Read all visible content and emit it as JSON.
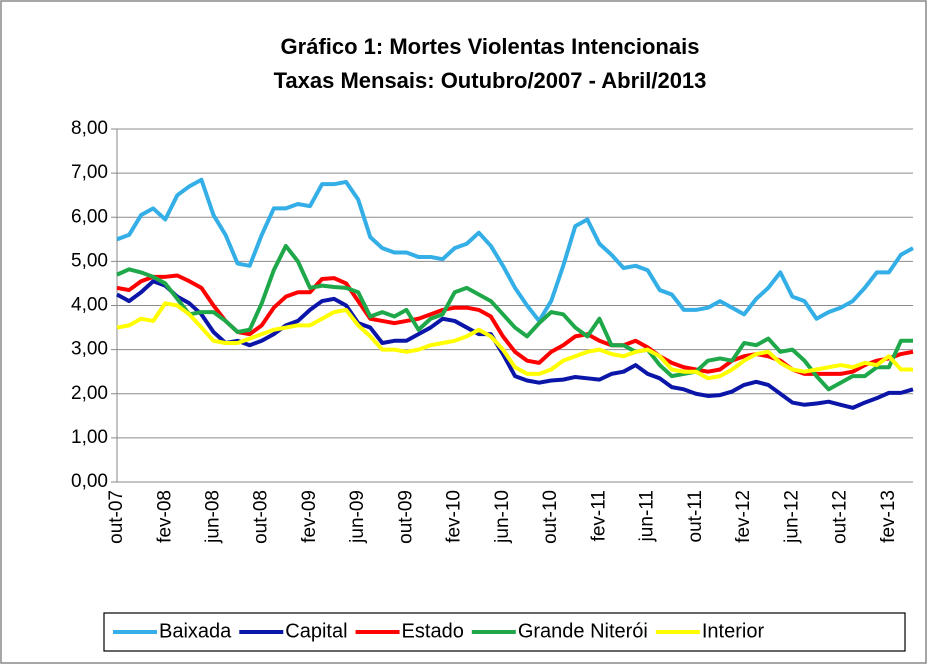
{
  "chart_data": {
    "type": "line",
    "title": "Gráfico 1: Mortes Violentas Intencionais",
    "subtitle": "Taxas Mensais: Outubro/2007 - Abril/2013",
    "categories": [
      "out-07",
      null,
      null,
      null,
      "fev-08",
      null,
      null,
      null,
      "jun-08",
      null,
      null,
      null,
      "out-08",
      null,
      null,
      null,
      "fev-09",
      null,
      null,
      null,
      "jun-09",
      null,
      null,
      null,
      "out-09",
      null,
      null,
      null,
      "fev-10",
      null,
      null,
      null,
      "jun-10",
      null,
      null,
      null,
      "out-10",
      null,
      null,
      null,
      "fev-11",
      null,
      null,
      null,
      "jun-11",
      null,
      null,
      null,
      "out-11",
      null,
      null,
      null,
      "fev-12",
      null,
      null,
      null,
      "jun-12",
      null,
      null,
      null,
      "out-12",
      null,
      null,
      null,
      "fev-13",
      null,
      null
    ],
    "series": [
      {
        "name": "Baixada",
        "color": "#33aee6",
        "values": [
          5.5,
          5.6,
          6.05,
          6.2,
          5.95,
          6.5,
          6.7,
          6.85,
          6.05,
          5.6,
          4.95,
          4.9,
          5.6,
          6.2,
          6.2,
          6.3,
          6.25,
          6.75,
          6.75,
          6.8,
          6.4,
          5.55,
          5.3,
          5.2,
          5.2,
          5.1,
          5.1,
          5.05,
          5.3,
          5.4,
          5.65,
          5.35,
          4.9,
          4.4,
          4.0,
          3.65,
          4.1,
          4.9,
          5.8,
          5.95,
          5.4,
          5.15,
          4.85,
          4.9,
          4.8,
          4.35,
          4.25,
          3.9,
          3.9,
          3.95,
          4.1,
          3.95,
          3.8,
          4.15,
          4.4,
          4.75,
          4.2,
          4.1,
          3.7,
          3.85,
          3.95,
          4.1,
          4.4,
          4.75,
          4.75,
          5.15,
          5.3
        ]
      },
      {
        "name": "Capital",
        "color": "#0b16a8",
        "values": [
          4.25,
          4.1,
          4.3,
          4.55,
          4.45,
          4.2,
          4.05,
          3.8,
          3.4,
          3.15,
          3.2,
          3.1,
          3.2,
          3.35,
          3.55,
          3.65,
          3.9,
          4.1,
          4.15,
          4.0,
          3.6,
          3.5,
          3.15,
          3.2,
          3.2,
          3.35,
          3.5,
          3.7,
          3.65,
          3.5,
          3.35,
          3.35,
          2.9,
          2.4,
          2.3,
          2.25,
          2.3,
          2.32,
          2.38,
          2.35,
          2.32,
          2.45,
          2.5,
          2.65,
          2.45,
          2.35,
          2.15,
          2.1,
          2.0,
          1.95,
          1.97,
          2.05,
          2.2,
          2.27,
          2.2,
          2.0,
          1.8,
          1.75,
          1.78,
          1.82,
          1.75,
          1.68,
          1.8,
          1.9,
          2.02,
          2.02,
          2.1
        ]
      },
      {
        "name": "Estado",
        "color": "#ff0000",
        "values": [
          4.4,
          4.35,
          4.55,
          4.65,
          4.65,
          4.68,
          4.55,
          4.4,
          4.0,
          3.65,
          3.4,
          3.35,
          3.55,
          3.95,
          4.2,
          4.3,
          4.3,
          4.6,
          4.62,
          4.5,
          4.1,
          3.7,
          3.65,
          3.6,
          3.65,
          3.7,
          3.8,
          3.9,
          3.95,
          3.95,
          3.9,
          3.75,
          3.3,
          2.95,
          2.75,
          2.7,
          2.95,
          3.1,
          3.3,
          3.35,
          3.2,
          3.1,
          3.1,
          3.2,
          3.05,
          2.85,
          2.7,
          2.6,
          2.55,
          2.5,
          2.55,
          2.75,
          2.85,
          2.9,
          2.85,
          2.75,
          2.55,
          2.45,
          2.45,
          2.45,
          2.45,
          2.5,
          2.65,
          2.75,
          2.8,
          2.9,
          2.95
        ]
      },
      {
        "name": "Grande Niterói",
        "color": "#1fa84a",
        "values": [
          4.7,
          4.82,
          4.75,
          4.65,
          4.5,
          4.15,
          3.8,
          3.85,
          3.85,
          3.65,
          3.4,
          3.45,
          4.05,
          4.8,
          5.35,
          5.0,
          4.4,
          4.45,
          4.42,
          4.4,
          4.3,
          3.75,
          3.85,
          3.75,
          3.9,
          3.45,
          3.7,
          3.8,
          4.3,
          4.4,
          4.25,
          4.1,
          3.8,
          3.5,
          3.3,
          3.6,
          3.85,
          3.8,
          3.5,
          3.3,
          3.7,
          3.1,
          3.1,
          2.95,
          3.0,
          2.65,
          2.4,
          2.45,
          2.5,
          2.75,
          2.8,
          2.75,
          3.15,
          3.1,
          3.25,
          2.95,
          3.0,
          2.75,
          2.4,
          2.1,
          2.25,
          2.4,
          2.4,
          2.6,
          2.6,
          3.2,
          3.2
        ]
      },
      {
        "name": "Interior",
        "color": "#ffff00",
        "values": [
          3.5,
          3.55,
          3.7,
          3.65,
          4.05,
          4.0,
          3.8,
          3.5,
          3.2,
          3.15,
          3.15,
          3.25,
          3.35,
          3.45,
          3.5,
          3.55,
          3.55,
          3.7,
          3.85,
          3.9,
          3.55,
          3.3,
          3.0,
          3.0,
          2.95,
          3.0,
          3.1,
          3.15,
          3.2,
          3.3,
          3.45,
          3.3,
          3.0,
          2.6,
          2.45,
          2.45,
          2.55,
          2.75,
          2.85,
          2.95,
          3.0,
          2.9,
          2.85,
          2.95,
          3.0,
          2.85,
          2.55,
          2.5,
          2.5,
          2.35,
          2.4,
          2.55,
          2.75,
          2.9,
          2.95,
          2.7,
          2.55,
          2.5,
          2.55,
          2.6,
          2.65,
          2.6,
          2.7,
          2.65,
          2.85,
          2.55,
          2.55
        ]
      }
    ],
    "ylim": [
      0,
      8
    ],
    "yticks": [
      {
        "value": 0,
        "label": "0,00"
      },
      {
        "value": 1,
        "label": "1,00"
      },
      {
        "value": 2,
        "label": "2,00"
      },
      {
        "value": 3,
        "label": "3,00"
      },
      {
        "value": 4,
        "label": "4,00"
      },
      {
        "value": 5,
        "label": "5,00"
      },
      {
        "value": 6,
        "label": "6,00"
      },
      {
        "value": 7,
        "label": "7,00"
      },
      {
        "value": 8,
        "label": "8,00"
      }
    ],
    "grid": true,
    "legend": "bottom"
  }
}
